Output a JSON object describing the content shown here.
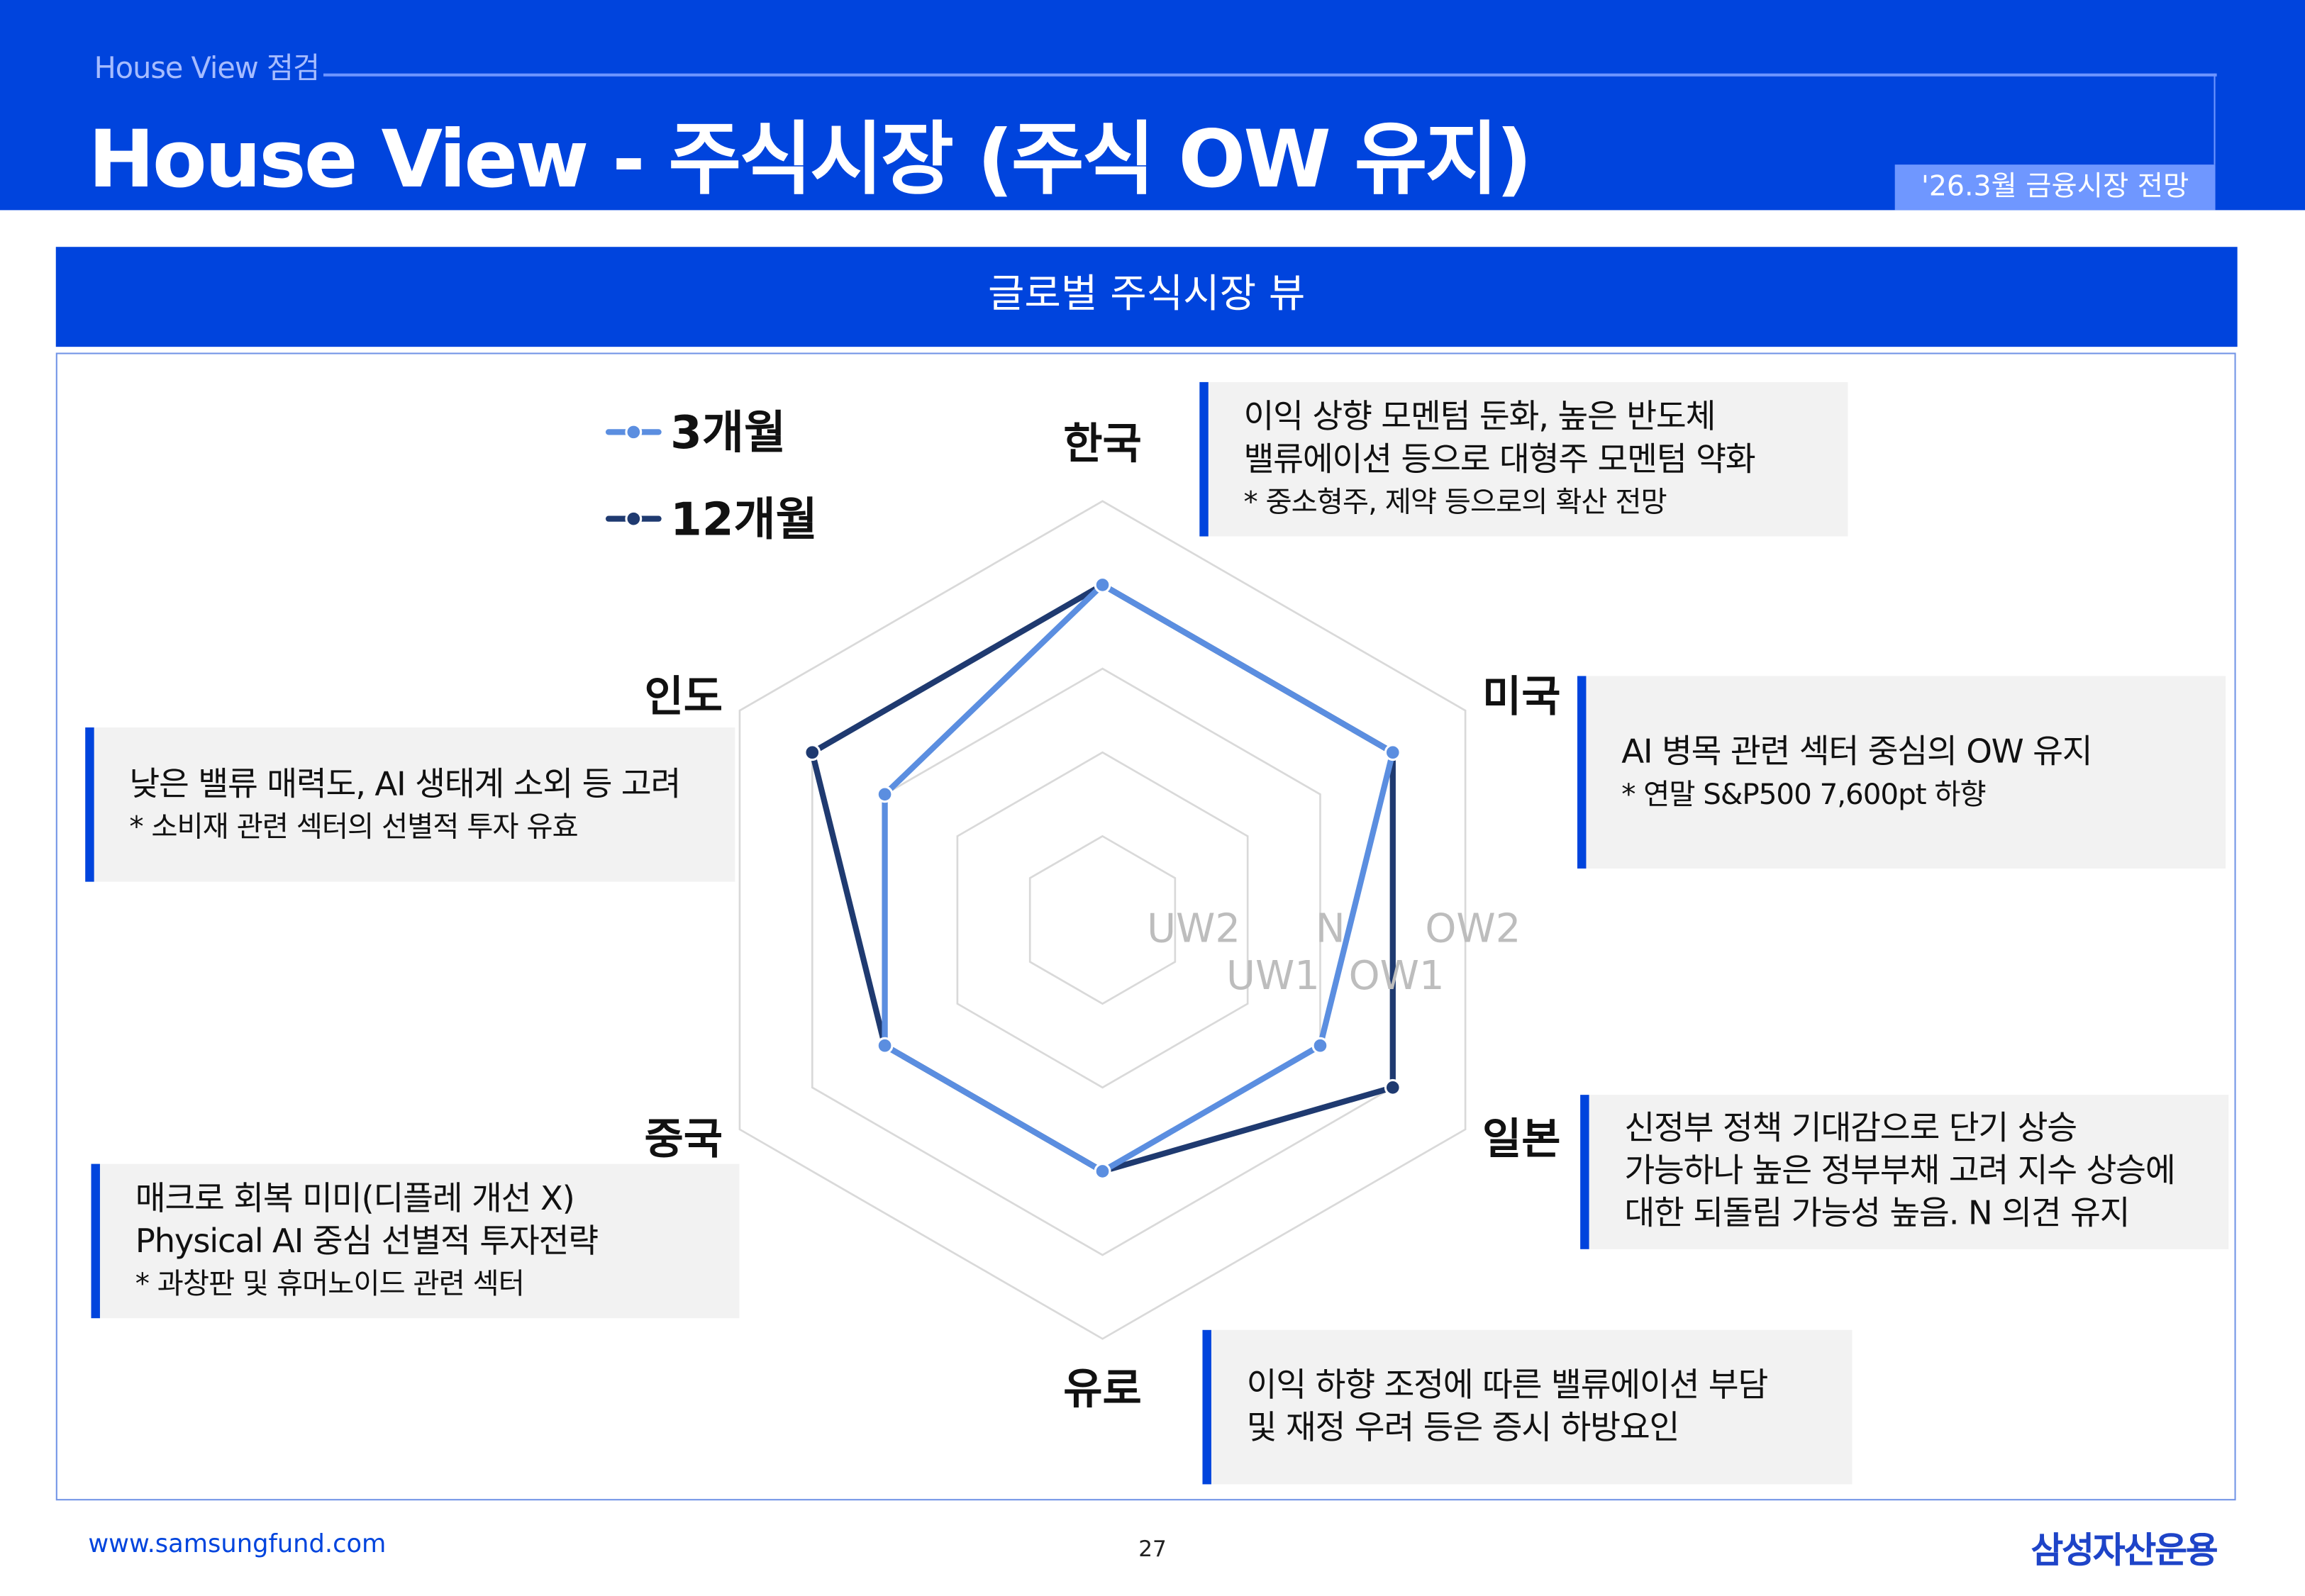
{
  "header": {
    "subtitle": "House View 점검",
    "title": "House View - 주식시장 (주식 OW 유지)",
    "date_tag": "'26.3월 금융시장 전망"
  },
  "section_title": "글로벌 주식시장 뷰",
  "legend": [
    {
      "label": "3개월",
      "color": "#5b8ee0"
    },
    {
      "label": "12개월",
      "color": "#1f3a70"
    }
  ],
  "chart_data": {
    "type": "radar",
    "axes": [
      "한국",
      "미국",
      "일본",
      "유로",
      "중국",
      "인도"
    ],
    "levels": [
      "UW2",
      "UW1",
      "N",
      "OW1",
      "OW2"
    ],
    "series": [
      {
        "name": "3개월",
        "values": [
          "OW1",
          "OW1",
          "N",
          "N",
          "N",
          "N"
        ],
        "color": "#5b8ee0"
      },
      {
        "name": "12개월",
        "values": [
          "OW1",
          "OW1",
          "OW1",
          "N",
          "N",
          "OW1"
        ],
        "color": "#1f3a70"
      }
    ],
    "grid": true,
    "legend_position": "top-left"
  },
  "notes": {
    "korea": {
      "lines": [
        "이익 상향 모멘텀 둔화, 높은 반도체",
        "밸류에이션 등으로 대형주 모멘텀 약화"
      ],
      "sub": "* 중소형주, 제약 등으로의 확산 전망"
    },
    "us": {
      "lines": [
        "AI 병목 관련 섹터 중심의 OW 유지"
      ],
      "sub": "* 연말 S&P500 7,600pt 하향"
    },
    "japan": {
      "lines": [
        "신정부 정책 기대감으로 단기 상승",
        "가능하나 높은 정부부채 고려 지수 상승에",
        "대한 되돌림 가능성 높음.  N 의견 유지"
      ]
    },
    "euro": {
      "lines": [
        "이익 하향 조정에 따른 밸류에이션 부담",
        "및 재정 우려 등은 증시 하방요인"
      ]
    },
    "india": {
      "lines": [
        "낮은 밸류 매력도, AI 생태계 소외 등 고려"
      ],
      "sub": "* 소비재 관련 섹터의 선별적 투자 유효"
    },
    "china": {
      "lines": [
        "매크로 회복 미미(디플레 개선 X)",
        "Physical AI 중심 선별적 투자전략"
      ],
      "sub": "* 과창판 및 휴머노이드 관련 섹터"
    }
  },
  "footer": {
    "url": "www.samsungfund.com",
    "page": "27",
    "logo": "삼성자산운용"
  },
  "colors": {
    "brand_blue": "#0044dd",
    "box_bg": "#f2f2f2",
    "grid": "#d9d9d9"
  }
}
